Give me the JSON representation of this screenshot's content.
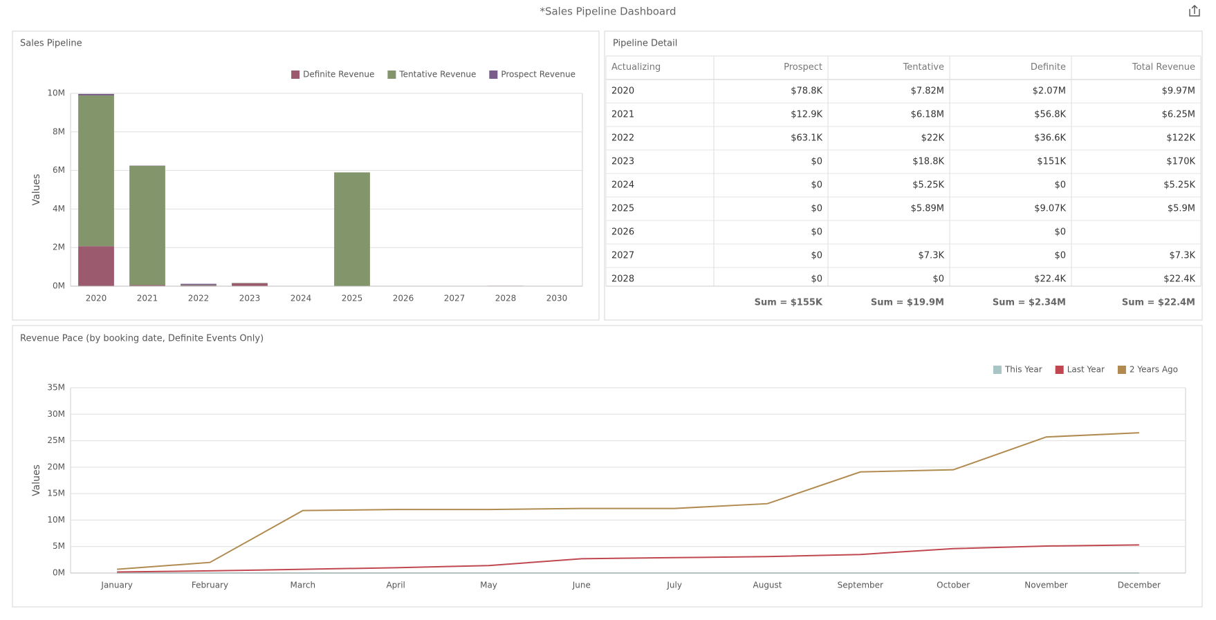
{
  "header": {
    "title": "*Sales Pipeline Dashboard"
  },
  "chart_data": [
    {
      "type": "bar",
      "stacked": true,
      "title": "Sales Pipeline",
      "y_label": "Values",
      "categories": [
        "2020",
        "2021",
        "2022",
        "2023",
        "2024",
        "2025",
        "2026",
        "2027",
        "2028",
        "2030"
      ],
      "series": [
        {
          "name": "Definite Revenue",
          "color": "#9c5a6e",
          "values": [
            2070000,
            56800,
            36600,
            151000,
            0,
            9070,
            0,
            0,
            22400,
            0
          ]
        },
        {
          "name": "Tentative Revenue",
          "color": "#83956a",
          "values": [
            7820000,
            6180000,
            22000,
            18800,
            5250,
            5890000,
            0,
            7300,
            0,
            0
          ]
        },
        {
          "name": "Prospect Revenue",
          "color": "#7a5e8a",
          "values": [
            78800,
            12900,
            63100,
            0,
            0,
            0,
            0,
            0,
            0,
            0
          ]
        }
      ],
      "ylim": [
        0,
        10000000
      ],
      "yticks": [
        {
          "value": 0,
          "label": "0M"
        },
        {
          "value": 2000000,
          "label": "2M"
        },
        {
          "value": 4000000,
          "label": "4M"
        },
        {
          "value": 6000000,
          "label": "6M"
        },
        {
          "value": 8000000,
          "label": "8M"
        },
        {
          "value": 10000000,
          "label": "10M"
        }
      ],
      "grid": true,
      "legend": "top-right"
    },
    {
      "type": "line",
      "title": "Revenue Pace (by booking date, Definite Events Only)",
      "y_label": "Values",
      "categories": [
        "January",
        "February",
        "March",
        "April",
        "May",
        "June",
        "July",
        "August",
        "September",
        "October",
        "November",
        "December"
      ],
      "series": [
        {
          "name": "This Year",
          "color": "#a8c4c4",
          "values": [
            0,
            0,
            0,
            0,
            0,
            0,
            0,
            0,
            0,
            0,
            0,
            0
          ]
        },
        {
          "name": "Last Year",
          "color": "#c0474f",
          "values": [
            200000,
            400000,
            700000,
            1000000,
            1400000,
            2700000,
            2900000,
            3100000,
            3500000,
            4600000,
            5100000,
            5300000
          ]
        },
        {
          "name": "2 Years Ago",
          "color": "#b08a4f",
          "values": [
            700000,
            2000000,
            11800000,
            12000000,
            12000000,
            12200000,
            12200000,
            13100000,
            19100000,
            19500000,
            25700000,
            26500000
          ]
        }
      ],
      "ylim": [
        0,
        35000000
      ],
      "yticks": [
        {
          "value": 0,
          "label": "0M"
        },
        {
          "value": 5000000,
          "label": "5M"
        },
        {
          "value": 10000000,
          "label": "10M"
        },
        {
          "value": 15000000,
          "label": "15M"
        },
        {
          "value": 20000000,
          "label": "20M"
        },
        {
          "value": 25000000,
          "label": "25M"
        },
        {
          "value": 30000000,
          "label": "30M"
        },
        {
          "value": 35000000,
          "label": "35M"
        }
      ],
      "grid": true,
      "legend": "top-right"
    }
  ],
  "table": {
    "title": "Pipeline Detail",
    "columns": [
      "Actualizing",
      "Prospect",
      "Tentative",
      "Definite",
      "Total Revenue"
    ],
    "rows": [
      [
        "2020",
        "$78.8K",
        "$7.82M",
        "$2.07M",
        "$9.97M"
      ],
      [
        "2021",
        "$12.9K",
        "$6.18M",
        "$56.8K",
        "$6.25M"
      ],
      [
        "2022",
        "$63.1K",
        "$22K",
        "$36.6K",
        "$122K"
      ],
      [
        "2023",
        "$0",
        "$18.8K",
        "$151K",
        "$170K"
      ],
      [
        "2024",
        "$0",
        "$5.25K",
        "$0",
        "$5.25K"
      ],
      [
        "2025",
        "$0",
        "$5.89M",
        "$9.07K",
        "$5.9M"
      ],
      [
        "2026",
        "$0",
        null,
        "$0",
        null
      ],
      [
        "2027",
        "$0",
        "$7.3K",
        "$0",
        "$7.3K"
      ],
      [
        "2028",
        "$0",
        "$0",
        "$22.4K",
        "$22.4K"
      ]
    ],
    "totals": [
      "Sum = $155K",
      "Sum = $19.9M",
      "Sum = $2.34M",
      "Sum = $22.4M"
    ]
  }
}
